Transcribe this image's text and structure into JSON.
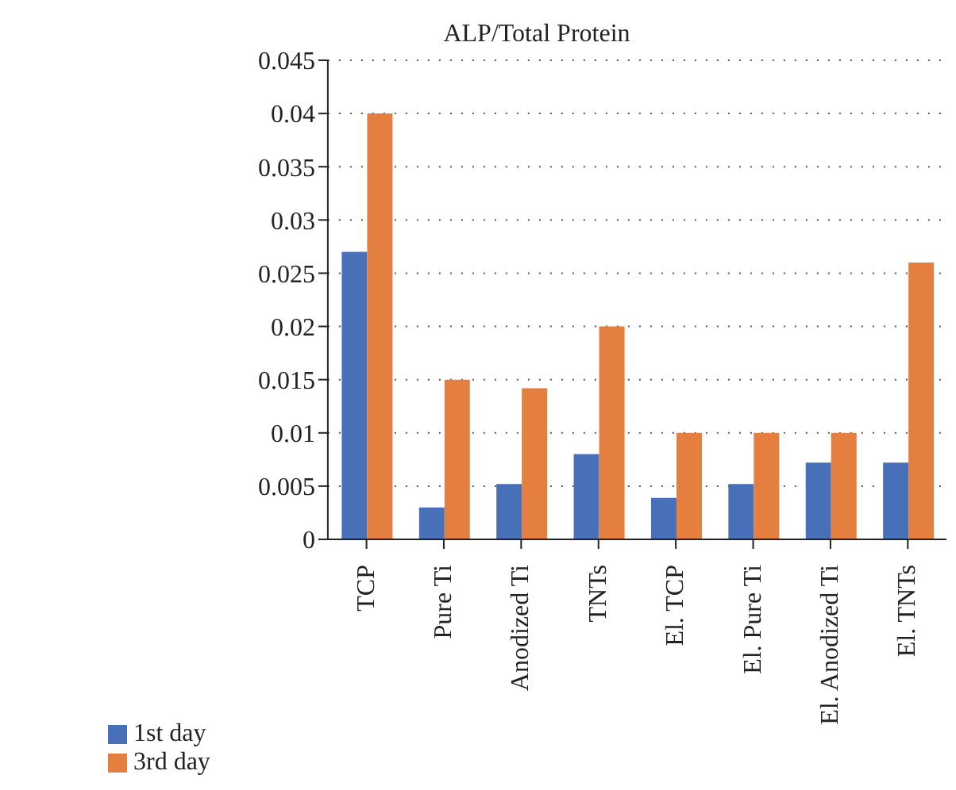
{
  "chart_data": {
    "type": "bar",
    "title": "ALP/Total Protein",
    "categories": [
      "TCP",
      "Pure Ti",
      "Anodized Ti",
      "TNTs",
      "El. TCP",
      "El. Pure Ti",
      "El. Anodized Ti",
      "El. TNTs"
    ],
    "series": [
      {
        "name": "1st day",
        "color": "#4770b8",
        "values": [
          0.027,
          0.003,
          0.0052,
          0.008,
          0.0039,
          0.0052,
          0.0072,
          0.0072
        ]
      },
      {
        "name": "3rd day",
        "color": "#e47f40",
        "values": [
          0.04,
          0.015,
          0.0142,
          0.02,
          0.01,
          0.01,
          0.01,
          0.026
        ]
      }
    ],
    "ylim": [
      0,
      0.045
    ],
    "yticks": [
      0,
      0.005,
      0.01,
      0.015,
      0.02,
      0.025,
      0.03,
      0.035,
      0.04,
      0.045
    ],
    "grid": "y",
    "legend": "bottom left"
  }
}
